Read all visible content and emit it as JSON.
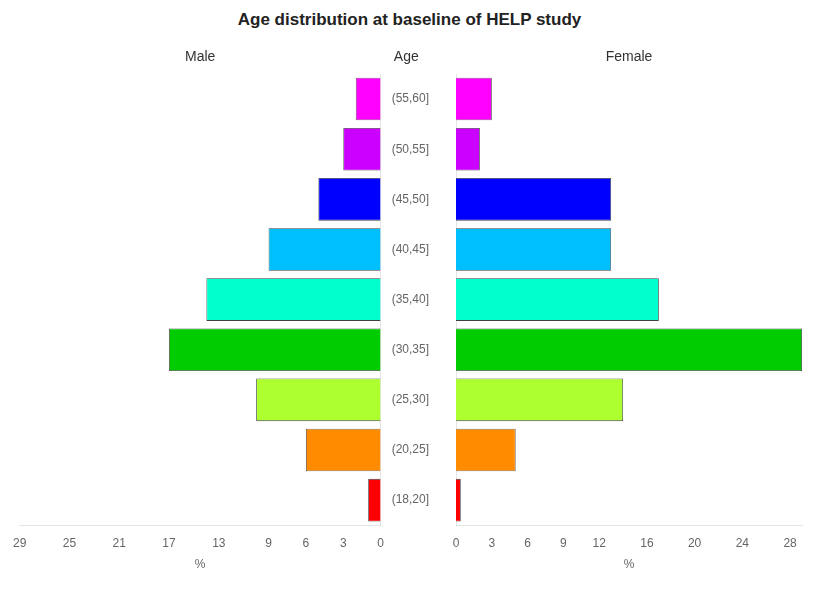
{
  "chart_data": [
    {
      "type": "bar",
      "orientation": "horizontal",
      "title": "Age distribution at baseline of HELP study",
      "subtitle": "Male",
      "ylabel": "Age",
      "xlabel": "%",
      "categories": [
        "(18,20]",
        "(20,25]",
        "(25,30]",
        "(30,35]",
        "(35,40]",
        "(40,45]",
        "(45,50]",
        "(50,55]",
        "(55,60]"
      ],
      "values": [
        1,
        6,
        10,
        17,
        14,
        9,
        5,
        3,
        2
      ],
      "colors": [
        "#ff0000",
        "#ff8c00",
        "#adff2f",
        "#00cc00",
        "#00ffcc",
        "#00bfff",
        "#0000ff",
        "#cc00ff",
        "#ff00ff"
      ],
      "xlim": [
        29,
        0
      ],
      "xticks": [
        29,
        25,
        21,
        17,
        13,
        9,
        6,
        3,
        0
      ],
      "grid": false
    },
    {
      "type": "bar",
      "orientation": "horizontal",
      "subtitle": "Female",
      "xlabel": "%",
      "categories": [
        "(18,20]",
        "(20,25]",
        "(25,30]",
        "(30,35]",
        "(35,40]",
        "(40,45]",
        "(45,50]",
        "(50,55]",
        "(55,60]"
      ],
      "values": [
        0.4,
        5,
        14,
        29,
        17,
        13,
        13,
        2,
        3
      ],
      "colors": [
        "#ff0000",
        "#ff8c00",
        "#adff2f",
        "#00cc00",
        "#00ffcc",
        "#00bfff",
        "#0000ff",
        "#cc00ff",
        "#ff00ff"
      ],
      "xlim": [
        0,
        29
      ],
      "xticks": [
        0,
        3,
        6,
        9,
        12,
        16,
        20,
        24,
        28
      ],
      "grid": false,
      "tick_labels": "x"
    }
  ]
}
